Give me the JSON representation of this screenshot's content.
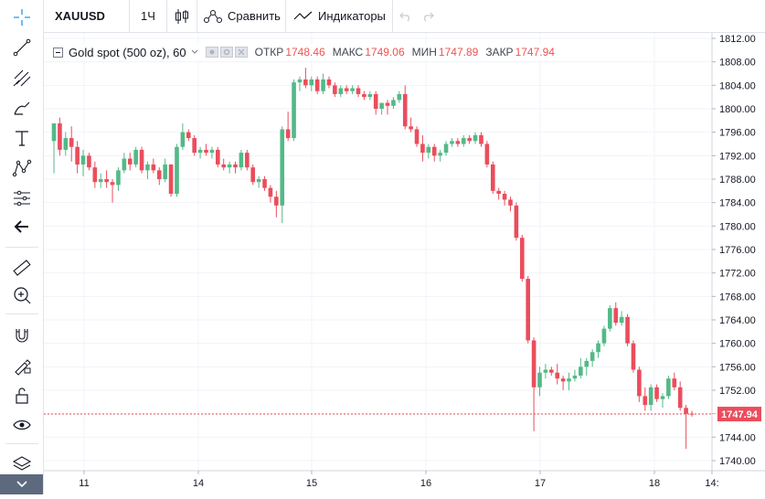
{
  "toolbar": {
    "symbol": "XAUUSD",
    "interval": "1Ч",
    "compare_label": "Сравнить",
    "indicators_label": "Индикаторы"
  },
  "legend": {
    "title": "Gold spot (500 oz), 60",
    "open_label": "ОТКР",
    "open_value": "1748.46",
    "high_label": "МАКС",
    "high_value": "1749.06",
    "low_label": "МИН",
    "low_value": "1747.89",
    "close_label": "ЗАКР",
    "close_value": "1747.94"
  },
  "sidebar": {
    "tools": [
      "crosshair-icon",
      "trend-line-icon",
      "fib-icon",
      "brush-icon",
      "text-icon",
      "pattern-icon",
      "measure-icon",
      "back-arrow-icon",
      "ruler-icon",
      "zoom-in-icon",
      "magnet-icon",
      "lock-drawing-icon",
      "unlock-icon",
      "eye-icon",
      "layers-icon"
    ]
  },
  "chart_data": {
    "type": "candlestick",
    "last_price_label": "1747.94",
    "y_ticks": [
      "1812.00",
      "1808.00",
      "1804.00",
      "1800.00",
      "1796.00",
      "1792.00",
      "1788.00",
      "1784.00",
      "1780.00",
      "1776.00",
      "1772.00",
      "1768.00",
      "1764.00",
      "1760.00",
      "1756.00",
      "1752.00",
      "1748.00",
      "1744.00",
      "1740.00"
    ],
    "x_ticks": [
      "11",
      "14",
      "15",
      "16",
      "17",
      "18",
      "14:"
    ],
    "colors": {
      "up": "#53b987",
      "down": "#eb4d5c",
      "price_line": "#eb4d5c",
      "grid": "#f0f3fa"
    },
    "candles": [
      [
        1794.5,
        1797.5,
        1789.0,
        1797.5
      ],
      [
        1797.5,
        1798.5,
        1792.0,
        1793.0
      ],
      [
        1793.0,
        1796.0,
        1792.0,
        1795.0
      ],
      [
        1795.0,
        1797.0,
        1791.0,
        1793.5
      ],
      [
        1793.5,
        1794.5,
        1789.0,
        1790.5
      ],
      [
        1790.5,
        1793.0,
        1788.5,
        1792.0
      ],
      [
        1792.0,
        1792.5,
        1789.5,
        1790.0
      ],
      [
        1790.0,
        1791.0,
        1786.5,
        1787.5
      ],
      [
        1787.5,
        1789.0,
        1786.5,
        1788.0
      ],
      [
        1788.0,
        1789.5,
        1786.5,
        1787.5
      ],
      [
        1787.5,
        1788.0,
        1784.0,
        1787.0
      ],
      [
        1787.0,
        1790.0,
        1786.0,
        1789.5
      ],
      [
        1789.5,
        1792.5,
        1789.0,
        1791.5
      ],
      [
        1791.5,
        1792.5,
        1789.5,
        1790.5
      ],
      [
        1790.5,
        1793.5,
        1790.0,
        1793.0
      ],
      [
        1793.0,
        1793.5,
        1789.0,
        1789.5
      ],
      [
        1789.5,
        1791.0,
        1788.0,
        1790.5
      ],
      [
        1790.5,
        1791.5,
        1789.0,
        1789.5
      ],
      [
        1789.5,
        1790.0,
        1787.0,
        1788.0
      ],
      [
        1788.0,
        1791.5,
        1787.5,
        1790.5
      ],
      [
        1790.5,
        1790.5,
        1785.0,
        1785.5
      ],
      [
        1785.5,
        1794.0,
        1785.0,
        1793.5
      ],
      [
        1793.5,
        1797.5,
        1793.0,
        1796.0
      ],
      [
        1796.0,
        1796.5,
        1794.5,
        1795.0
      ],
      [
        1795.0,
        1795.5,
        1792.0,
        1792.5
      ],
      [
        1792.5,
        1793.5,
        1791.5,
        1793.0
      ],
      [
        1793.0,
        1794.0,
        1792.0,
        1792.5
      ],
      [
        1792.5,
        1793.5,
        1791.5,
        1793.0
      ],
      [
        1793.0,
        1793.5,
        1790.0,
        1790.5
      ],
      [
        1790.5,
        1791.5,
        1789.5,
        1790.0
      ],
      [
        1790.0,
        1791.0,
        1789.0,
        1790.5
      ],
      [
        1790.5,
        1791.0,
        1789.0,
        1790.0
      ],
      [
        1790.0,
        1793.0,
        1789.5,
        1792.5
      ],
      [
        1792.5,
        1793.0,
        1789.5,
        1790.0
      ],
      [
        1790.0,
        1790.5,
        1787.0,
        1787.5
      ],
      [
        1787.5,
        1788.5,
        1786.5,
        1788.0
      ],
      [
        1788.0,
        1788.5,
        1786.0,
        1786.5
      ],
      [
        1786.5,
        1787.0,
        1784.0,
        1785.0
      ],
      [
        1785.0,
        1786.0,
        1781.5,
        1783.5
      ],
      [
        1783.5,
        1797.0,
        1780.5,
        1796.5
      ],
      [
        1796.5,
        1799.5,
        1794.5,
        1795.0
      ],
      [
        1795.0,
        1805.0,
        1794.5,
        1804.5
      ],
      [
        1804.5,
        1805.5,
        1803.0,
        1805.0
      ],
      [
        1805.0,
        1807.0,
        1803.5,
        1804.0
      ],
      [
        1804.0,
        1805.5,
        1803.0,
        1805.0
      ],
      [
        1805.0,
        1805.5,
        1802.5,
        1803.0
      ],
      [
        1803.0,
        1806.0,
        1802.5,
        1805.0
      ],
      [
        1805.0,
        1805.5,
        1803.5,
        1804.0
      ],
      [
        1804.0,
        1804.5,
        1802.0,
        1802.5
      ],
      [
        1802.5,
        1804.0,
        1802.0,
        1803.5
      ],
      [
        1803.5,
        1804.0,
        1802.5,
        1803.0
      ],
      [
        1803.0,
        1804.0,
        1802.5,
        1803.5
      ],
      [
        1803.5,
        1804.0,
        1802.0,
        1802.5
      ],
      [
        1802.5,
        1803.0,
        1801.5,
        1802.0
      ],
      [
        1802.0,
        1803.0,
        1801.5,
        1802.5
      ],
      [
        1802.5,
        1803.0,
        1799.0,
        1800.0
      ],
      [
        1800.0,
        1801.0,
        1799.0,
        1801.0
      ],
      [
        1801.0,
        1801.5,
        1799.0,
        1800.5
      ],
      [
        1800.5,
        1802.0,
        1800.0,
        1801.5
      ],
      [
        1801.5,
        1803.0,
        1801.0,
        1802.5
      ],
      [
        1802.5,
        1804.0,
        1796.5,
        1797.0
      ],
      [
        1797.0,
        1798.5,
        1796.0,
        1796.5
      ],
      [
        1796.5,
        1797.0,
        1793.5,
        1794.0
      ],
      [
        1794.0,
        1795.5,
        1791.0,
        1792.5
      ],
      [
        1792.5,
        1794.0,
        1791.5,
        1793.5
      ],
      [
        1793.5,
        1794.0,
        1791.0,
        1792.0
      ],
      [
        1792.0,
        1793.0,
        1791.0,
        1792.5
      ],
      [
        1792.5,
        1794.5,
        1792.0,
        1794.0
      ],
      [
        1794.0,
        1795.0,
        1793.5,
        1794.5
      ],
      [
        1794.5,
        1795.0,
        1793.5,
        1794.0
      ],
      [
        1794.0,
        1795.5,
        1793.5,
        1795.0
      ],
      [
        1795.0,
        1795.5,
        1794.0,
        1794.5
      ],
      [
        1794.5,
        1796.0,
        1794.0,
        1795.5
      ],
      [
        1795.5,
        1796.0,
        1793.5,
        1794.0
      ],
      [
        1794.0,
        1794.5,
        1790.0,
        1790.5
      ],
      [
        1790.5,
        1791.0,
        1785.5,
        1786.0
      ],
      [
        1786.0,
        1786.5,
        1784.5,
        1785.5
      ],
      [
        1785.5,
        1786.0,
        1783.5,
        1784.5
      ],
      [
        1784.5,
        1785.0,
        1782.5,
        1783.5
      ],
      [
        1783.5,
        1784.0,
        1777.5,
        1778.0
      ],
      [
        1778.0,
        1778.5,
        1770.5,
        1771.0
      ],
      [
        1771.0,
        1771.5,
        1760.0,
        1760.5
      ],
      [
        1760.5,
        1761.0,
        1745.0,
        1752.5
      ],
      [
        1752.5,
        1756.0,
        1751.0,
        1755.0
      ],
      [
        1755.0,
        1756.5,
        1754.0,
        1755.5
      ],
      [
        1755.5,
        1756.0,
        1754.5,
        1755.0
      ],
      [
        1755.0,
        1756.5,
        1753.0,
        1754.0
      ],
      [
        1754.0,
        1754.5,
        1752.0,
        1753.5
      ],
      [
        1753.5,
        1755.0,
        1752.0,
        1754.0
      ],
      [
        1754.0,
        1755.5,
        1753.5,
        1754.5
      ],
      [
        1754.5,
        1757.5,
        1754.0,
        1756.0
      ],
      [
        1756.0,
        1757.5,
        1754.5,
        1757.0
      ],
      [
        1757.0,
        1759.0,
        1756.0,
        1758.5
      ],
      [
        1758.5,
        1760.5,
        1757.5,
        1760.0
      ],
      [
        1760.0,
        1763.0,
        1759.5,
        1762.5
      ],
      [
        1762.5,
        1766.5,
        1762.0,
        1766.0
      ],
      [
        1766.0,
        1767.0,
        1763.0,
        1763.5
      ],
      [
        1763.5,
        1765.5,
        1763.0,
        1764.5
      ],
      [
        1764.5,
        1765.0,
        1759.5,
        1760.0
      ],
      [
        1760.0,
        1760.5,
        1755.0,
        1755.5
      ],
      [
        1755.5,
        1756.0,
        1750.0,
        1751.0
      ],
      [
        1751.0,
        1752.5,
        1748.5,
        1749.5
      ],
      [
        1749.5,
        1753.0,
        1748.5,
        1752.5
      ],
      [
        1752.5,
        1753.0,
        1750.0,
        1750.5
      ],
      [
        1750.5,
        1751.5,
        1749.0,
        1751.0
      ],
      [
        1751.0,
        1754.5,
        1750.5,
        1754.0
      ],
      [
        1754.0,
        1755.0,
        1752.0,
        1752.5
      ],
      [
        1752.5,
        1753.5,
        1748.5,
        1749.0
      ],
      [
        1749.0,
        1749.5,
        1742.0,
        1748.0
      ],
      [
        1748.0,
        1748.5,
        1747.5,
        1747.9
      ]
    ]
  }
}
